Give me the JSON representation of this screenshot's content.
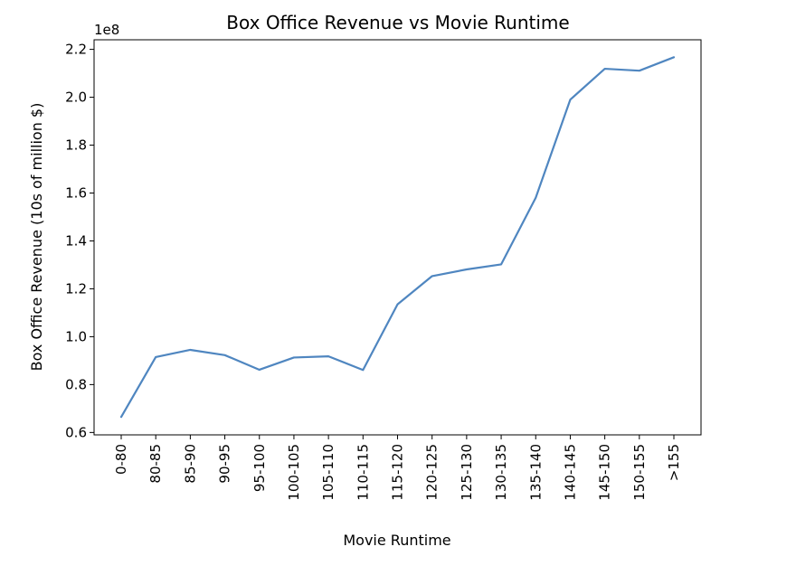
{
  "chart_data": {
    "type": "line",
    "title": "Box Office Revenue  vs Movie Runtime",
    "xlabel": "Movie Runtime",
    "ylabel": "Box Office Revenue (10s of million $)",
    "y_offset_label": "1e8",
    "categories": [
      "0-80",
      "80-85",
      "85-90",
      "90-95",
      "95-100",
      "100-105",
      "105-110",
      "110-115",
      "115-120",
      "120-125",
      "125-130",
      "130-135",
      "135-140",
      "140-145",
      "145-150",
      "150-155",
      ">155"
    ],
    "series": [
      {
        "values": [
          0.665,
          0.915,
          0.945,
          0.923,
          0.862,
          0.913,
          0.918,
          0.861,
          1.135,
          1.253,
          1.281,
          1.302,
          1.58,
          1.99,
          2.119,
          2.111,
          2.167
        ],
        "color": "#4f86c0"
      }
    ],
    "yticks": [
      "0.6",
      "0.8",
      "1.0",
      "1.2",
      "1.4",
      "1.6",
      "1.8",
      "2.0",
      "2.2"
    ],
    "ylim": [
      0.59,
      2.24
    ],
    "grid": false
  }
}
